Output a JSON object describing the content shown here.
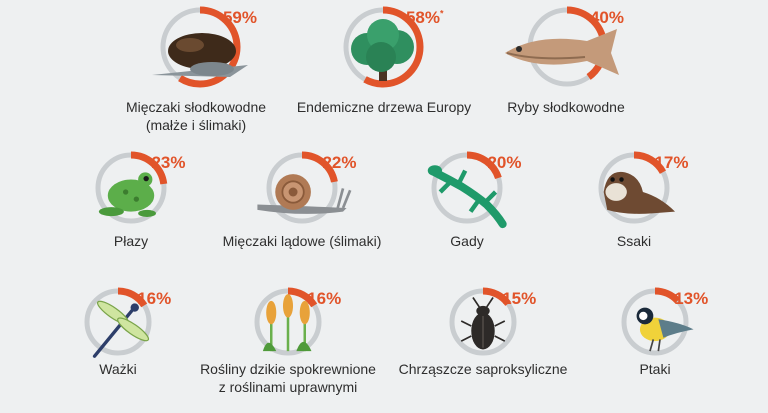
{
  "colors": {
    "ring_track": "#c9cdd0",
    "ring_fill": "#e1542a",
    "percent_text": "#e1542a",
    "background": "#eef0f1"
  },
  "items": [
    {
      "key": "freshwater-molluscs",
      "percent": "59%",
      "value": 0.59,
      "label_lines": [
        "Mięczaki słodkowodne",
        "(małże i ślimaki)"
      ],
      "icon": "mussel-icon"
    },
    {
      "key": "endemic-trees",
      "percent": "58%",
      "asterisk": "*",
      "value": 0.58,
      "label_lines": [
        "Endemiczne drzewa Europy"
      ],
      "icon": "tree-icon"
    },
    {
      "key": "freshwater-fish",
      "percent": "40%",
      "value": 0.4,
      "label_lines": [
        "Ryby słodkowodne"
      ],
      "icon": "fish-icon"
    },
    {
      "key": "amphibians",
      "percent": "23%",
      "value": 0.23,
      "label_lines": [
        "Płazy"
      ],
      "icon": "frog-icon"
    },
    {
      "key": "land-molluscs",
      "percent": "22%",
      "value": 0.22,
      "label_lines": [
        "Mięczaki lądowe (ślimaki)"
      ],
      "icon": "snail-icon"
    },
    {
      "key": "reptiles",
      "percent": "20%",
      "value": 0.2,
      "label_lines": [
        "Gady"
      ],
      "icon": "lizard-icon"
    },
    {
      "key": "mammals",
      "percent": "17%",
      "value": 0.17,
      "label_lines": [
        "Ssaki"
      ],
      "icon": "otter-icon"
    },
    {
      "key": "dragonflies",
      "percent": "16%",
      "value": 0.16,
      "label_lines": [
        "Ważki"
      ],
      "icon": "dragonfly-icon"
    },
    {
      "key": "crop-wild-relatives",
      "percent": "16%",
      "value": 0.16,
      "label_lines": [
        "Rośliny dzikie spokrewnione",
        "z roślinami uprawnymi"
      ],
      "icon": "wheat-icon"
    },
    {
      "key": "saproxylic-beetles",
      "percent": "15%",
      "value": 0.15,
      "label_lines": [
        "Chrząszcze saproksyliczne"
      ],
      "icon": "beetle-icon"
    },
    {
      "key": "birds",
      "percent": "13%",
      "value": 0.13,
      "label_lines": [
        "Ptaki"
      ],
      "icon": "bird-icon"
    }
  ]
}
